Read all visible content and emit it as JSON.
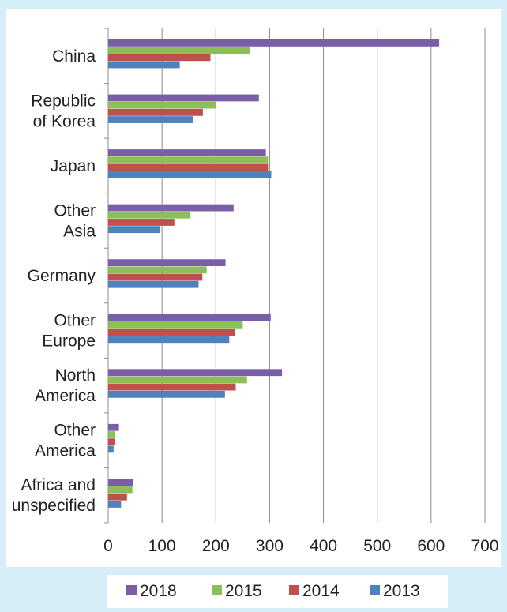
{
  "chart_data": {
    "type": "bar",
    "orientation": "horizontal",
    "title": "",
    "xlabel": "",
    "ylabel": "",
    "xlim": [
      0,
      700
    ],
    "xticks": [
      0,
      100,
      200,
      300,
      400,
      500,
      600,
      700
    ],
    "grid": true,
    "legend_position": "bottom",
    "categories": [
      [
        "China"
      ],
      [
        "Republic",
        "of Korea"
      ],
      [
        "Japan"
      ],
      [
        "Other",
        "Asia"
      ],
      [
        "Germany"
      ],
      [
        "Other",
        "Europe"
      ],
      [
        "North",
        "America"
      ],
      [
        "Other",
        "America"
      ],
      [
        "Africa and",
        "unspecified"
      ]
    ],
    "series": [
      {
        "name": "2018",
        "color": "#7b5ea8",
        "values": [
          615,
          280,
          293,
          233,
          218,
          302,
          323,
          20,
          47
        ]
      },
      {
        "name": "2015",
        "color": "#8dbe58",
        "values": [
          263,
          200,
          297,
          153,
          183,
          250,
          258,
          13,
          45
        ]
      },
      {
        "name": "2014",
        "color": "#c0504d",
        "values": [
          190,
          176,
          297,
          123,
          175,
          236,
          237,
          12,
          35
        ]
      },
      {
        "name": "2013",
        "color": "#4f81bd",
        "values": [
          133,
          157,
          303,
          97,
          168,
          225,
          217,
          10,
          24
        ]
      }
    ]
  }
}
